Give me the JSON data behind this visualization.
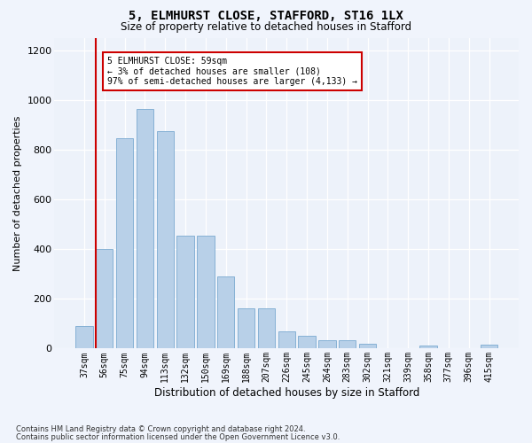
{
  "title1": "5, ELMHURST CLOSE, STAFFORD, ST16 1LX",
  "title2": "Size of property relative to detached houses in Stafford",
  "xlabel": "Distribution of detached houses by size in Stafford",
  "ylabel": "Number of detached properties",
  "footer1": "Contains HM Land Registry data © Crown copyright and database right 2024.",
  "footer2": "Contains public sector information licensed under the Open Government Licence v3.0.",
  "categories": [
    "37sqm",
    "56sqm",
    "75sqm",
    "94sqm",
    "113sqm",
    "132sqm",
    "150sqm",
    "169sqm",
    "188sqm",
    "207sqm",
    "226sqm",
    "245sqm",
    "264sqm",
    "283sqm",
    "302sqm",
    "321sqm",
    "339sqm",
    "358sqm",
    "377sqm",
    "396sqm",
    "415sqm"
  ],
  "values": [
    90,
    400,
    845,
    965,
    875,
    455,
    455,
    290,
    163,
    163,
    70,
    50,
    32,
    32,
    18,
    0,
    0,
    12,
    0,
    0,
    15
  ],
  "bar_color": "#b8d0e8",
  "bar_edge_color": "#7aaad0",
  "vline_index": 1,
  "vline_color": "#cc0000",
  "annotation_line1": "5 ELMHURST CLOSE: 59sqm",
  "annotation_line2": "← 3% of detached houses are smaller (108)",
  "annotation_line3": "97% of semi-detached houses are larger (4,133) →",
  "annotation_box_facecolor": "#ffffff",
  "annotation_box_edgecolor": "#cc0000",
  "ylim": [
    0,
    1250
  ],
  "yticks": [
    0,
    200,
    400,
    600,
    800,
    1000,
    1200
  ],
  "fig_facecolor": "#f0f4fc",
  "axes_facecolor": "#edf2fa",
  "grid_color": "#ffffff",
  "title1_fontsize": 10,
  "title2_fontsize": 8.5,
  "ylabel_fontsize": 8,
  "xlabel_fontsize": 8.5,
  "tick_fontsize": 7,
  "footer_fontsize": 6
}
